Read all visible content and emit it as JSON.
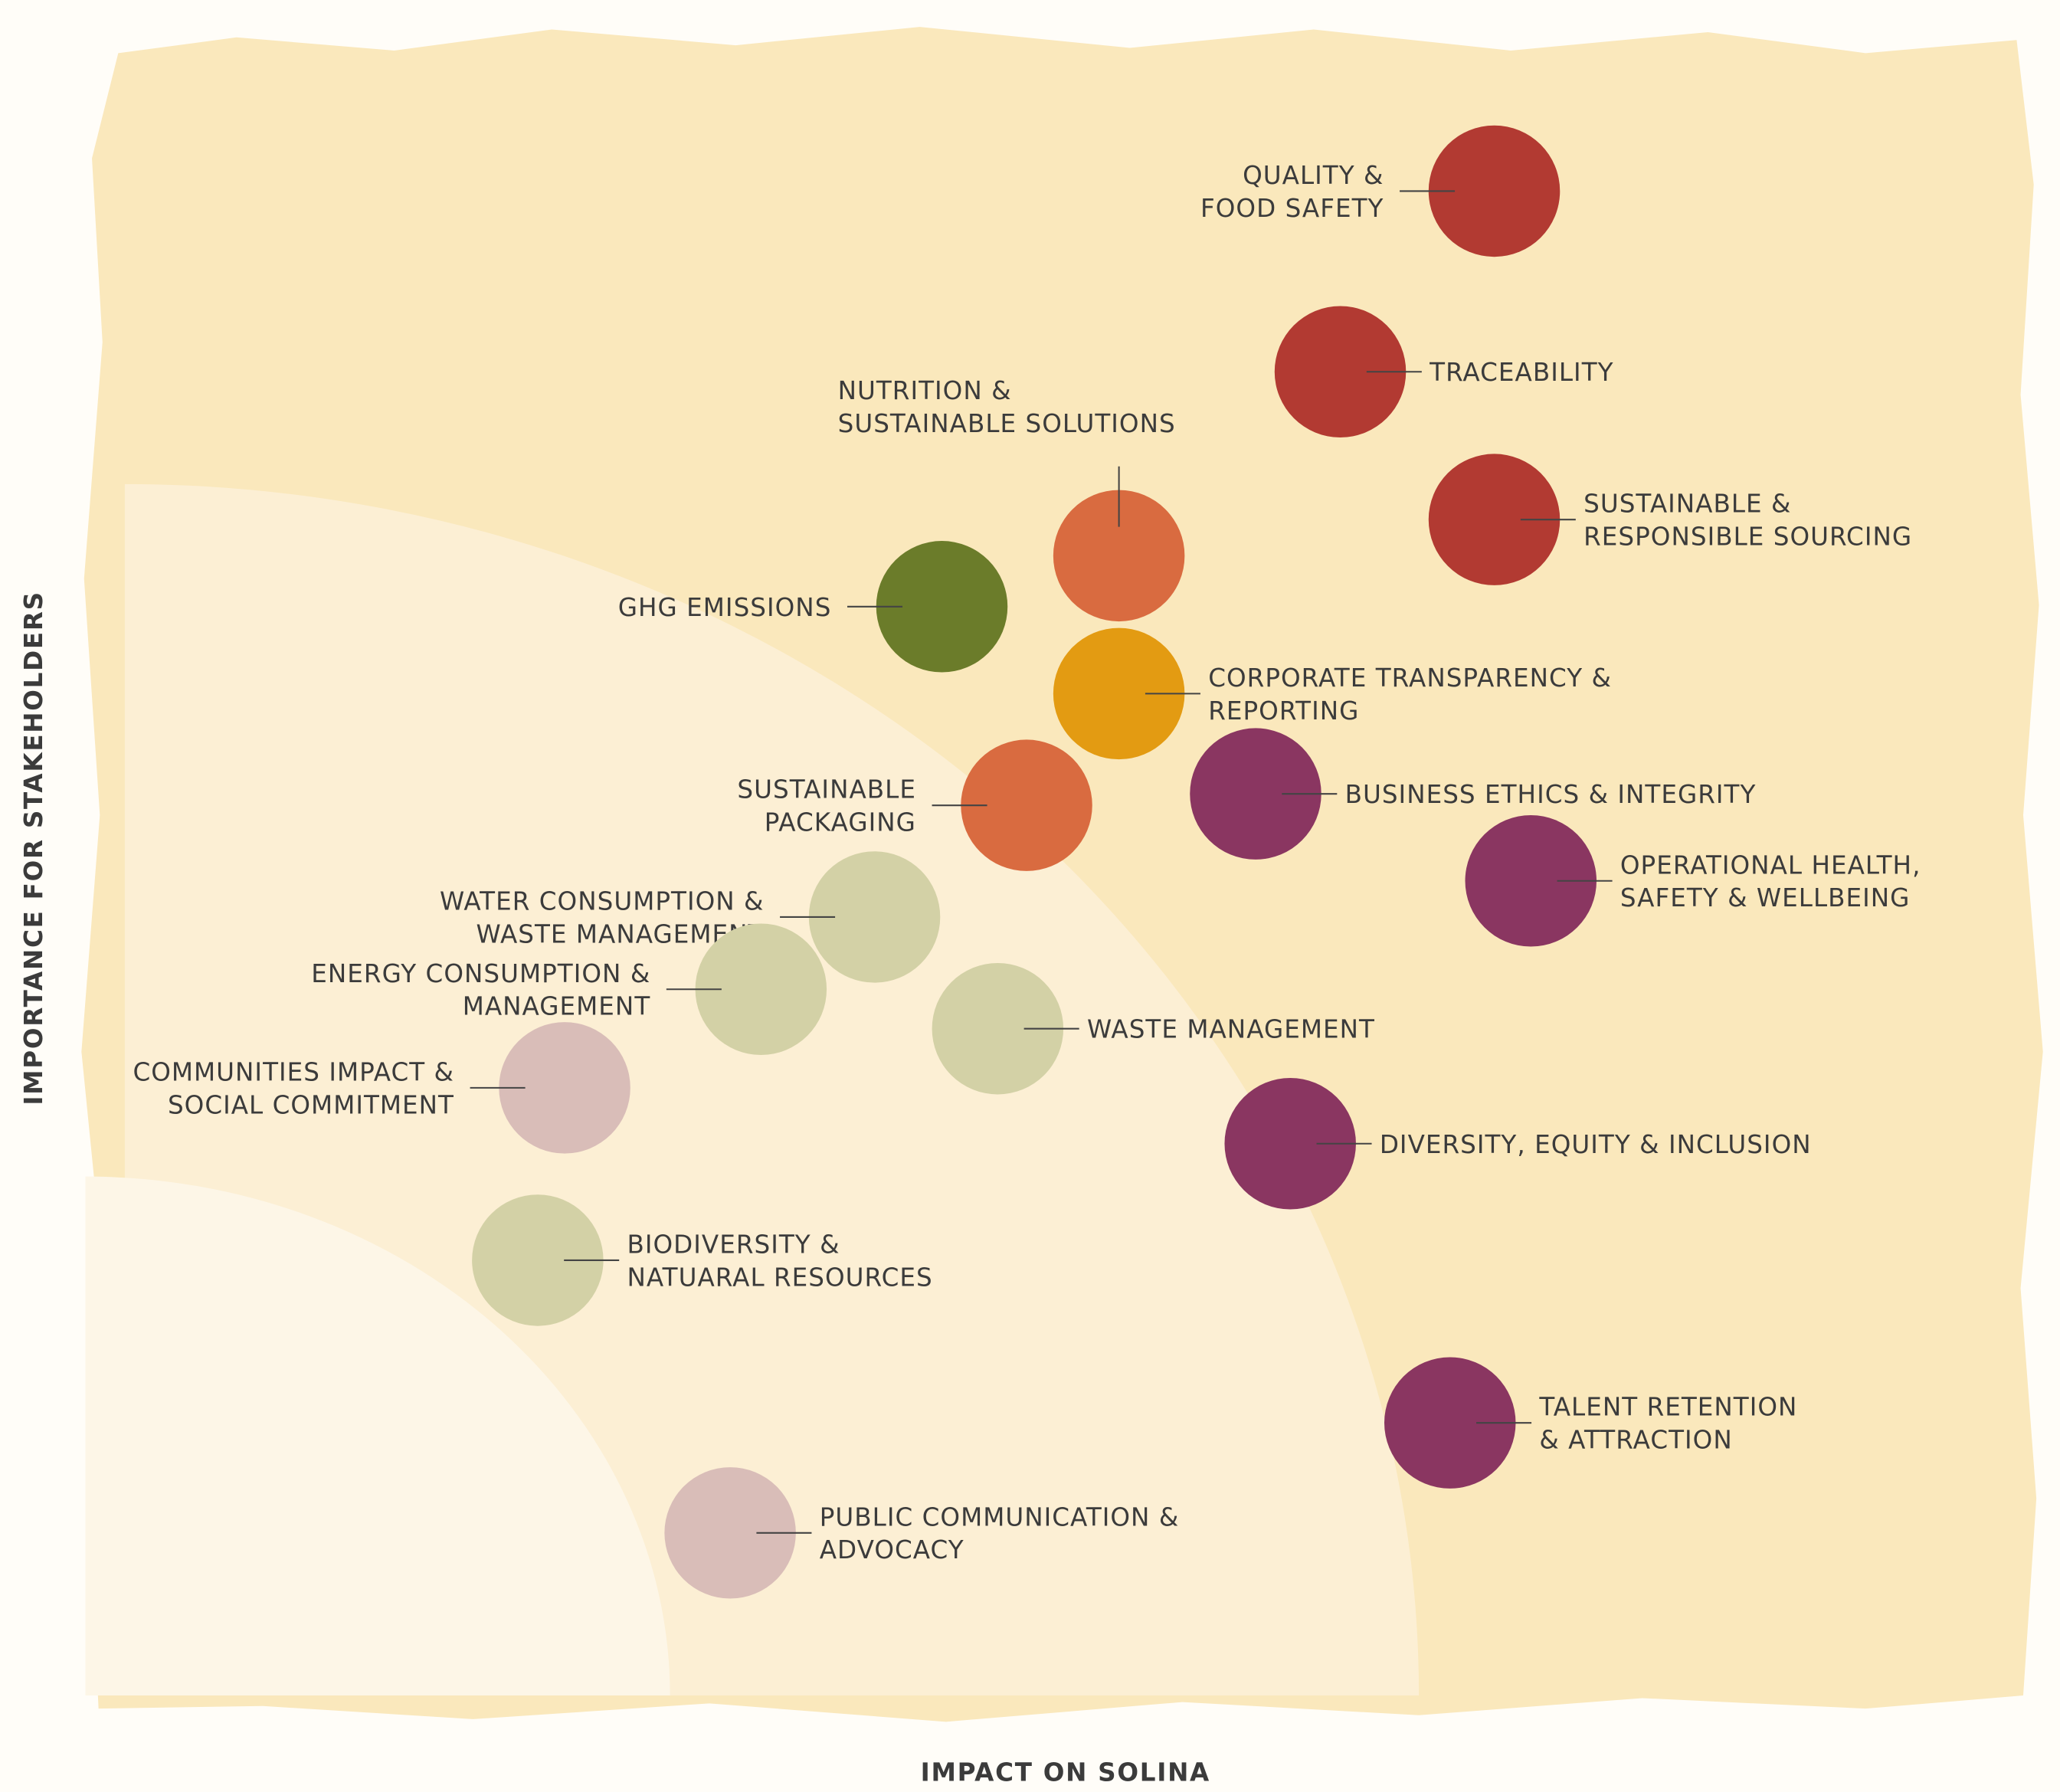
{
  "chart_data": {
    "type": "scatter",
    "x_label": "IMPACT ON SOLINA",
    "y_label": "IMPORTANCE FOR STAKEHOLDERS",
    "xlim": [
      0,
      100
    ],
    "ylim": [
      0,
      100
    ],
    "points": [
      {
        "label": [
          "QUALITY &",
          "FOOD SAFETY"
        ],
        "x": 73.2,
        "y": 91.6,
        "color": "#b23a32"
      },
      {
        "label": [
          "TRACEABILITY"
        ],
        "x": 65.2,
        "y": 80.6,
        "color": "#b23a32"
      },
      {
        "label": [
          "SUSTAINABLE &",
          "RESPONSIBLE SOURCING"
        ],
        "x": 73.2,
        "y": 71.6,
        "color": "#b23a32"
      },
      {
        "label": [
          "NUTRITION &",
          "SUSTAINABLE SOLUTIONS"
        ],
        "x": 53.7,
        "y": 69.4,
        "color": "#d96b40"
      },
      {
        "label": [
          "GHG EMISSIONS"
        ],
        "x": 44.5,
        "y": 66.3,
        "color": "#6b7c2a"
      },
      {
        "label": [
          "CORPORATE TRANSPARENCY &",
          "REPORTING"
        ],
        "x": 53.7,
        "y": 61.0,
        "color": "#e39b12"
      },
      {
        "label": [
          "SUSTAINABLE",
          "PACKAGING"
        ],
        "x": 48.9,
        "y": 54.2,
        "color": "#d96b40"
      },
      {
        "label": [
          "BUSINESS ETHICS & INTEGRITY"
        ],
        "x": 60.8,
        "y": 54.9,
        "color": "#8a3661"
      },
      {
        "label": [
          "OPERATIONAL HEALTH,",
          "SAFETY & WELLBEING"
        ],
        "x": 75.1,
        "y": 49.6,
        "color": "#8a3661"
      },
      {
        "label": [
          "WATER CONSUMPTION &",
          "WASTE MANAGEMENT"
        ],
        "x": 41.0,
        "y": 47.4,
        "color": "#d3d1a6"
      },
      {
        "label": [
          "ENERGY CONSUMPTION &",
          "MANAGEMENT"
        ],
        "x": 35.1,
        "y": 43.0,
        "color": "#d3d1a6"
      },
      {
        "label": [
          "WASTE MANAGEMENT"
        ],
        "x": 47.4,
        "y": 40.6,
        "color": "#d3d1a6"
      },
      {
        "label": [
          "COMMUNITIES IMPACT &",
          "SOCIAL COMMITMENT"
        ],
        "x": 24.9,
        "y": 37.0,
        "color": "#d9bdb8"
      },
      {
        "label": [
          "DIVERSITY, EQUITY & INCLUSION"
        ],
        "x": 62.6,
        "y": 33.6,
        "color": "#8a3661"
      },
      {
        "label": [
          "BIODIVERSITY &",
          "NATUARAL RESOURCES"
        ],
        "x": 23.5,
        "y": 26.5,
        "color": "#d3d1a6"
      },
      {
        "label": [
          "TALENT RETENTION",
          "& ATTRACTION"
        ],
        "x": 70.9,
        "y": 16.6,
        "color": "#8a3661"
      },
      {
        "label": [
          "PUBLIC COMMUNICATION &",
          "ADVOCACY"
        ],
        "x": 33.5,
        "y": 9.9,
        "color": "#d9bdb8"
      }
    ]
  }
}
